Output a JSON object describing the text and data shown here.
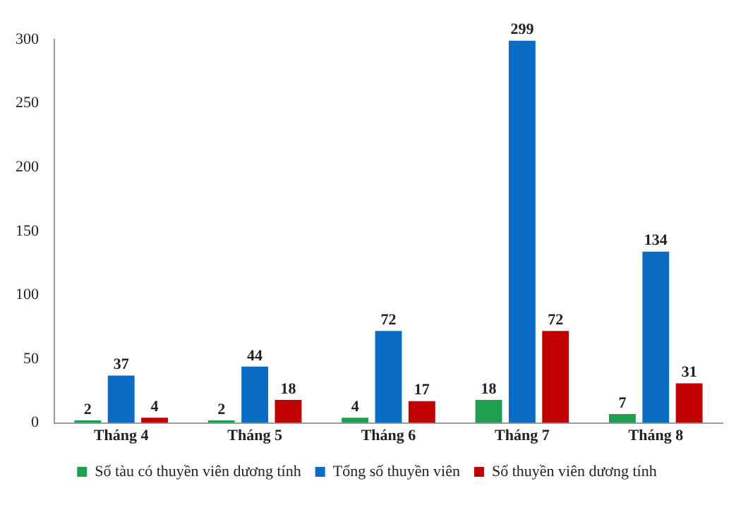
{
  "chart_data": {
    "type": "bar",
    "categories": [
      "Tháng 4",
      "Tháng 5",
      "Tháng 6",
      "Tháng 7",
      "Tháng 8"
    ],
    "series": [
      {
        "name": "Số tàu có thuyền viên dương tính",
        "color": "#1fa050",
        "values": [
          2,
          2,
          4,
          18,
          7
        ]
      },
      {
        "name": "Tổng số thuyền viên",
        "color": "#0a6cc4",
        "values": [
          37,
          44,
          72,
          299,
          134
        ]
      },
      {
        "name": "Số thuyền viên dương tính",
        "color": "#c00000",
        "values": [
          4,
          18,
          17,
          72,
          31
        ]
      }
    ],
    "ylim": [
      0,
      300
    ],
    "yticks": [
      0,
      50,
      100,
      150,
      200,
      250,
      300
    ],
    "grid": false,
    "legend": "bottom",
    "data_labels": true
  }
}
